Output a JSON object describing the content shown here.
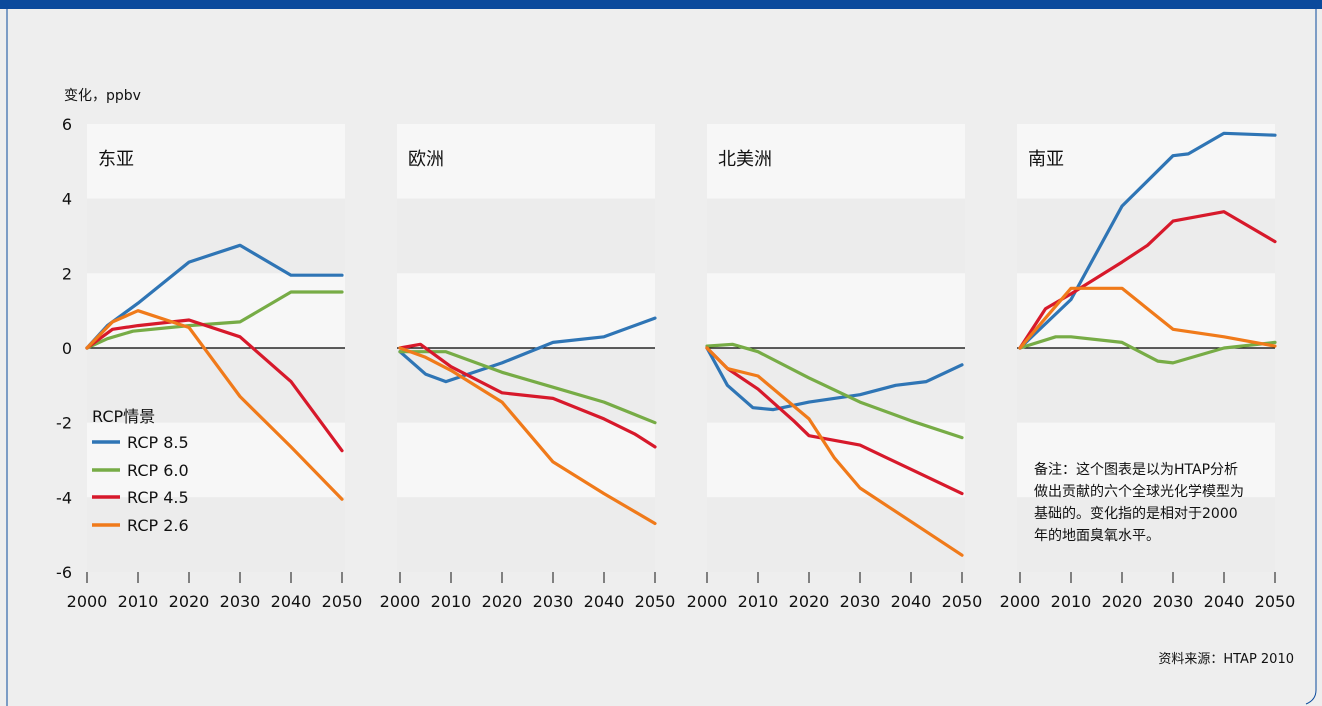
{
  "unit_label": "变化，ppbv",
  "legend": {
    "title": "RCP情景",
    "items": [
      {
        "label": "RCP 8.5",
        "color": "#2f75b5"
      },
      {
        "label": "RCP 6.0",
        "color": "#77ac46"
      },
      {
        "label": "RCP 4.5",
        "color": "#d7192b"
      },
      {
        "label": "RCP 2.6",
        "color": "#f07a1a"
      }
    ]
  },
  "note": {
    "lines": [
      "备注：这个图表是以为HTAP分析",
      "做出贡献的六个全球光化学模型为",
      "基础的。变化指的是相对于2000",
      "年的地面臭氧水平。"
    ]
  },
  "source": "资料来源：HTAP 2010",
  "colors": {
    "frame_blue": "#0b4a9c",
    "panel_band": "#f7f7f7",
    "panel_band_alt": "#ececec",
    "background": "#eeeeee",
    "zero_line": "#000000"
  },
  "chart_data": [
    {
      "type": "line",
      "title": "东亚",
      "xlim": [
        2000,
        2050
      ],
      "ylim": [
        -6,
        6
      ],
      "xticks": [
        2000,
        2010,
        2020,
        2030,
        2040,
        2050
      ],
      "yticks": [
        6,
        4,
        2,
        0,
        -2,
        -4,
        -6
      ],
      "series": [
        {
          "name": "RCP 8.5",
          "x": [
            2000,
            2004,
            2010,
            2020,
            2030,
            2040,
            2050
          ],
          "y": [
            0,
            0.6,
            1.2,
            2.3,
            2.75,
            1.95,
            1.95
          ]
        },
        {
          "name": "RCP 6.0",
          "x": [
            2000,
            2004,
            2009,
            2020,
            2030,
            2040,
            2050
          ],
          "y": [
            0,
            0.25,
            0.45,
            0.6,
            0.7,
            1.5,
            1.5
          ]
        },
        {
          "name": "RCP 4.5",
          "x": [
            2000,
            2005,
            2010,
            2020,
            2030,
            2040,
            2050
          ],
          "y": [
            0,
            0.5,
            0.6,
            0.75,
            0.3,
            -0.9,
            -2.75
          ]
        },
        {
          "name": "RCP 2.6",
          "x": [
            2000,
            2005,
            2010,
            2020,
            2030,
            2040,
            2050
          ],
          "y": [
            0,
            0.7,
            1.0,
            0.55,
            -1.3,
            -2.65,
            -4.05
          ]
        }
      ]
    },
    {
      "type": "line",
      "title": "欧洲",
      "xlim": [
        2000,
        2050
      ],
      "ylim": [
        -6,
        6
      ],
      "xticks": [
        2000,
        2010,
        2020,
        2030,
        2040,
        2050
      ],
      "yticks": [
        6,
        4,
        2,
        0,
        -2,
        -4,
        -6
      ],
      "series": [
        {
          "name": "RCP 8.5",
          "x": [
            2000,
            2005,
            2009,
            2020,
            2030,
            2040,
            2050
          ],
          "y": [
            -0.1,
            -0.7,
            -0.9,
            -0.4,
            0.15,
            0.3,
            0.8
          ]
        },
        {
          "name": "RCP 6.0",
          "x": [
            2000,
            2005,
            2009,
            2020,
            2030,
            2040,
            2050
          ],
          "y": [
            -0.1,
            -0.1,
            -0.1,
            -0.65,
            -1.05,
            -1.45,
            -2.0
          ]
        },
        {
          "name": "RCP 4.5",
          "x": [
            2000,
            2004,
            2010,
            2020,
            2030,
            2040,
            2046,
            2050
          ],
          "y": [
            0,
            0.1,
            -0.5,
            -1.2,
            -1.35,
            -1.9,
            -2.3,
            -2.65
          ]
        },
        {
          "name": "RCP 2.6",
          "x": [
            2000,
            2005,
            2010,
            2020,
            2030,
            2040,
            2050
          ],
          "y": [
            0,
            -0.25,
            -0.6,
            -1.45,
            -3.05,
            -3.9,
            -4.7
          ]
        }
      ]
    },
    {
      "type": "line",
      "title": "北美洲",
      "xlim": [
        2000,
        2050
      ],
      "ylim": [
        -6,
        6
      ],
      "xticks": [
        2000,
        2010,
        2020,
        2030,
        2040,
        2050
      ],
      "yticks": [
        6,
        4,
        2,
        0,
        -2,
        -4,
        -6
      ],
      "series": [
        {
          "name": "RCP 8.5",
          "x": [
            2000,
            2004,
            2009,
            2013,
            2020,
            2030,
            2037,
            2043,
            2050
          ],
          "y": [
            0,
            -1.0,
            -1.6,
            -1.65,
            -1.45,
            -1.25,
            -1.0,
            -0.9,
            -0.45
          ]
        },
        {
          "name": "RCP 6.0",
          "x": [
            2000,
            2005,
            2010,
            2020,
            2030,
            2040,
            2050
          ],
          "y": [
            0.05,
            0.1,
            -0.1,
            -0.8,
            -1.45,
            -1.95,
            -2.4
          ]
        },
        {
          "name": "RCP 4.5",
          "x": [
            2000,
            2004,
            2010,
            2017,
            2020,
            2030,
            2040,
            2050
          ],
          "y": [
            0,
            -0.55,
            -1.1,
            -1.95,
            -2.35,
            -2.6,
            -3.25,
            -3.9
          ]
        },
        {
          "name": "RCP 2.6",
          "x": [
            2000,
            2004,
            2010,
            2020,
            2025,
            2030,
            2040,
            2050
          ],
          "y": [
            0,
            -0.55,
            -0.75,
            -1.9,
            -2.95,
            -3.75,
            -4.65,
            -5.55
          ]
        }
      ]
    },
    {
      "type": "line",
      "title": "南亚",
      "xlim": [
        2000,
        2050
      ],
      "ylim": [
        -6,
        6
      ],
      "xticks": [
        2000,
        2010,
        2020,
        2030,
        2040,
        2050
      ],
      "yticks": [
        6,
        4,
        2,
        0,
        -2,
        -4,
        -6
      ],
      "series": [
        {
          "name": "RCP 8.5",
          "x": [
            2000,
            2010,
            2020,
            2030,
            2033,
            2040,
            2050
          ],
          "y": [
            0,
            1.3,
            3.8,
            5.15,
            5.2,
            5.75,
            5.7
          ]
        },
        {
          "name": "RCP 6.0",
          "x": [
            2000,
            2007,
            2010,
            2020,
            2027,
            2030,
            2040,
            2050
          ],
          "y": [
            0,
            0.3,
            0.3,
            0.15,
            -0.35,
            -0.4,
            0,
            0.15
          ]
        },
        {
          "name": "RCP 4.5",
          "x": [
            2000,
            2005,
            2010,
            2020,
            2025,
            2030,
            2040,
            2050
          ],
          "y": [
            0,
            1.05,
            1.45,
            2.3,
            2.75,
            3.4,
            3.65,
            2.85
          ]
        },
        {
          "name": "RCP 2.6",
          "x": [
            2000,
            2005,
            2010,
            2020,
            2030,
            2040,
            2050
          ],
          "y": [
            0,
            0.8,
            1.6,
            1.6,
            0.5,
            0.3,
            0.05
          ]
        }
      ]
    }
  ]
}
